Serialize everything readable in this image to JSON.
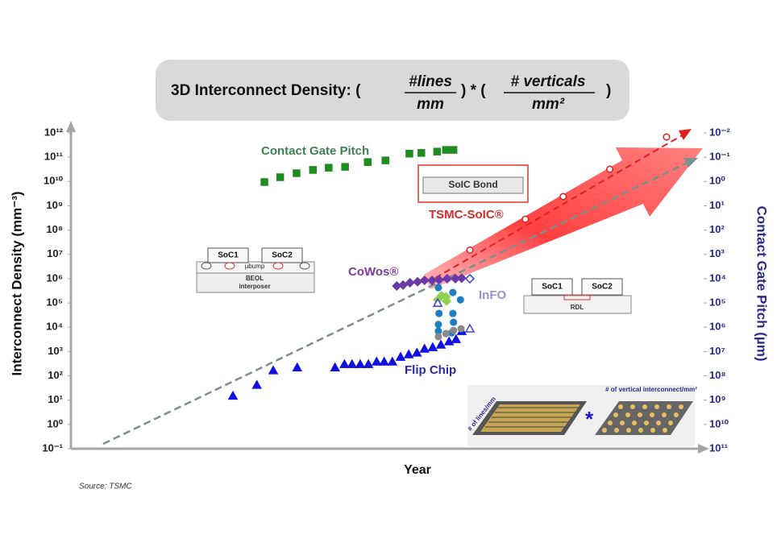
{
  "header": {
    "prefix": "3D Interconnect Density: (",
    "num1": "#lines",
    "den1": "mm",
    "mid": ") * (",
    "num2": "# verticals",
    "den2": "mm²",
    "suffix": ")"
  },
  "chart_data": {
    "type": "scatter",
    "ylabel": "Interconnect Density (mm⁻³)",
    "y2label": "Contact Gate Pitch (µm)",
    "xlabel": "Year",
    "xlim": [
      0,
      100
    ],
    "ylim": [
      0.1,
      1000000000000
    ],
    "ylog": true,
    "yticks": [
      {
        "value": 0.1,
        "label": "10⁻¹"
      },
      {
        "value": 1,
        "label": "10⁰"
      },
      {
        "value": 10,
        "label": "10¹"
      },
      {
        "value": 100,
        "label": "10²"
      },
      {
        "value": 1000,
        "label": "10³"
      },
      {
        "value": 10000,
        "label": "10⁴"
      },
      {
        "value": 100000,
        "label": "10⁵"
      },
      {
        "value": 1000000,
        "label": "10⁶"
      },
      {
        "value": 10000000,
        "label": "10⁷"
      },
      {
        "value": 100000000,
        "label": "10⁸"
      },
      {
        "value": 1000000000,
        "label": "10⁹"
      },
      {
        "value": 10000000000,
        "label": "10¹⁰"
      },
      {
        "value": 100000000000,
        "label": "10¹¹"
      },
      {
        "value": 1000000000000,
        "label": "10¹²"
      }
    ],
    "y2lim": [
      100000000000,
      0.01
    ],
    "y2log": true,
    "y2ticks": [
      {
        "value": 0.01,
        "label": "10⁻²"
      },
      {
        "value": 0.1,
        "label": "10⁻¹"
      },
      {
        "value": 1,
        "label": "10⁰"
      },
      {
        "value": 10,
        "label": "10¹"
      },
      {
        "value": 100,
        "label": "10²"
      },
      {
        "value": 1000,
        "label": "10³"
      },
      {
        "value": 10000,
        "label": "10⁴"
      },
      {
        "value": 100000,
        "label": "10⁵"
      },
      {
        "value": 1000000,
        "label": "10⁶"
      },
      {
        "value": 10000000,
        "label": "10⁷"
      },
      {
        "value": 100000000,
        "label": "10⁸"
      },
      {
        "value": 1000000000,
        "label": "10⁹"
      },
      {
        "value": 10000000000,
        "label": "10¹⁰"
      },
      {
        "value": 100000000000,
        "label": "10¹¹"
      }
    ],
    "series": [
      {
        "name": "Contact Gate Pitch",
        "color": "#1e8c1e",
        "label_color": "#3f7f52",
        "marker": "square",
        "filled": true,
        "x": [
          30.7,
          33.2,
          35.8,
          38.4,
          40.9,
          43.5,
          47.1,
          49.9,
          53.7,
          55.6,
          58.1,
          59.5,
          60.7
        ],
        "values": [
          9500000000,
          15000000000,
          22000000000,
          30000000000,
          37000000000,
          40000000000,
          63000000000,
          74000000000,
          140000000000,
          150000000000,
          170000000000,
          200000000000,
          200000000000
        ]
      },
      {
        "name": "Flip Chip",
        "color": "#1010e0",
        "label_color": "#2a2a9a",
        "marker": "triangle",
        "filled": true,
        "x": [
          25.7,
          29.5,
          32.1,
          35.9,
          41.9,
          43.4,
          44.6,
          45.9,
          47.2,
          48.5,
          49.7,
          51.0,
          52.3,
          53.6,
          54.9,
          56.1,
          57.4,
          58.7,
          60.0,
          61.1,
          62.0
        ],
        "values": [
          15,
          42,
          166,
          220,
          220,
          300,
          300,
          300,
          300,
          380,
          380,
          380,
          600,
          760,
          890,
          1300,
          1500,
          1900,
          2600,
          3200,
          6900
        ]
      },
      {
        "name": "CoWos®",
        "color": "#6b3aa8",
        "label_color": "#7a3b9a",
        "marker": "diamond",
        "filled": true,
        "x": [
          51.7,
          52.7,
          53.8,
          55.0,
          56.1,
          57.3,
          58.4,
          59.7,
          61.0,
          62.0
        ],
        "values": [
          500000,
          550000,
          680000,
          750000,
          850000,
          850000,
          900000,
          1000000,
          1000000,
          1050000
        ]
      },
      {
        "name": "InFO",
        "color": "#1f7ec0",
        "label_color": "#9a8fd0",
        "marker": "circle",
        "filled": true,
        "x": [
          58.3,
          60.6,
          61.8,
          58.4,
          60.6,
          60.7,
          58.3,
          58.3,
          60.4
        ],
        "values": [
          430000,
          270000,
          135000,
          37000,
          37000,
          16000,
          13000,
          6900,
          5900
        ]
      },
      {
        "name": "TSMC-SoIC®",
        "color": "#e02020",
        "label_color": "#d82c2c",
        "marker": "circle",
        "filled": false,
        "x": [
          63.3,
          72.1,
          78.1,
          85.5,
          94.5
        ],
        "values": [
          15000000,
          280000000,
          2400000000,
          32000000000,
          680000000000
        ]
      },
      {
        "name": null,
        "color": "#8fd14f",
        "marker": "diamond",
        "filled": true,
        "x": [
          58.2,
          58.8,
          59.5,
          59.6
        ],
        "values": [
          135000,
          200000,
          180000,
          120000
        ]
      },
      {
        "name": null,
        "color": "#8a8a8a",
        "marker": "circle",
        "filled": true,
        "x": [
          58.3,
          59.5,
          60.7,
          61.9
        ],
        "values": [
          4100,
          5500,
          7400,
          8700
        ]
      },
      {
        "name": null,
        "color": "#4040d0",
        "marker": "triangle",
        "filled": false,
        "x": [
          58.2,
          63.3
        ],
        "values": [
          100000,
          8700
        ]
      },
      {
        "name": null,
        "color": "#4040d0",
        "marker": "diamond",
        "filled": false,
        "x": [
          63.3
        ],
        "values": [
          1000000
        ]
      }
    ]
  },
  "diagrams": {
    "interposer": {
      "chip1": "SoC1",
      "chip2": "SoC2",
      "bump": "µbump",
      "beol": "BEOL",
      "base": "interposer"
    },
    "soic": {
      "bond": "SoIC Bond"
    },
    "info": {
      "chip1": "SoC1",
      "chip2": "SoC2",
      "rdl": "RDL"
    },
    "density": {
      "lines": "# of lines/mm",
      "verticals": "# of vertical interconnect/mm²",
      "times": "*"
    }
  },
  "source": "Source: TSMC"
}
